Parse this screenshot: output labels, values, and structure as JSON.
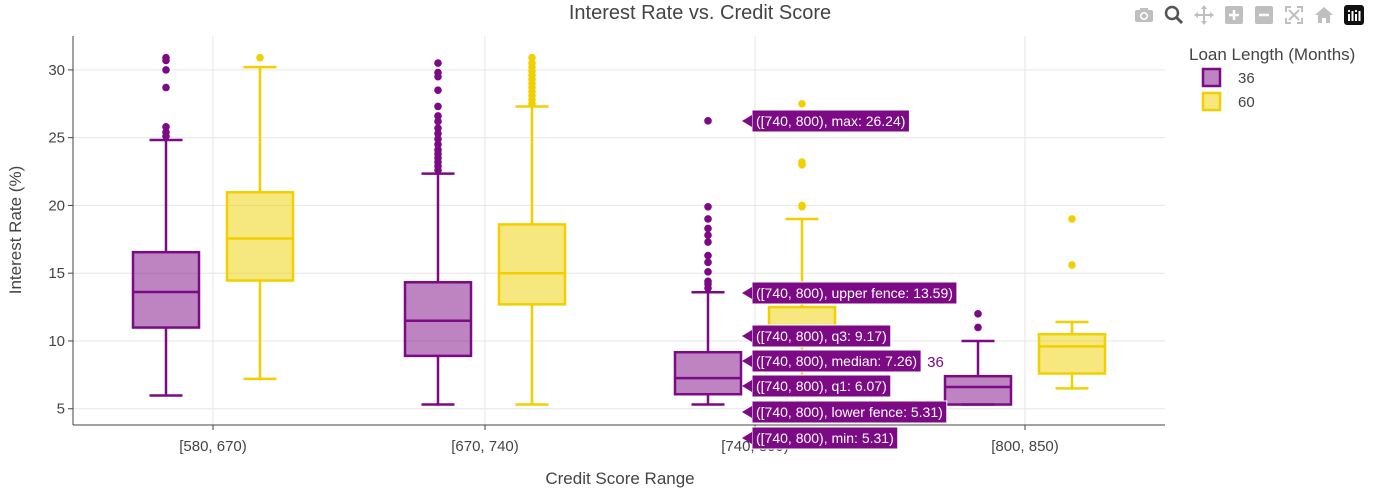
{
  "chart_data": {
    "type": "box",
    "title": "Interest Rate vs. Credit Score",
    "xlabel": "Credit Score Range",
    "ylabel": "Interest Rate (%)",
    "categories": [
      "[580, 670)",
      "[670, 740)",
      "[740, 800)",
      "[800, 850)"
    ],
    "ylim": [
      3.8,
      32.5
    ],
    "yticks": [
      5,
      10,
      15,
      20,
      25,
      30
    ],
    "grid": true,
    "legend": {
      "title": "Loan Length (Months)",
      "placement": "top-right"
    },
    "series": [
      {
        "name": "36",
        "color": "#7b0a84",
        "boxes": [
          {
            "min": 5.98,
            "q1": 10.99,
            "median": 13.61,
            "q3": 16.55,
            "max": 24.83,
            "outliers": [
              25.1,
              25.4,
              25.8,
              28.7,
              30.0,
              30.7,
              30.9
            ]
          },
          {
            "min": 5.31,
            "q1": 8.9,
            "median": 11.49,
            "q3": 14.33,
            "max": 22.35,
            "outliers": [
              22.6,
              22.9,
              23.2,
              23.5,
              23.8,
              24.1,
              24.5,
              24.9,
              25.3,
              25.7,
              26.2,
              26.6,
              27.3,
              28.5,
              29.5,
              29.8,
              30.5
            ]
          },
          {
            "min": 5.31,
            "q1": 6.07,
            "median": 7.26,
            "q3": 9.17,
            "max": 13.59,
            "outliers": [
              13.9,
              14.2,
              14.4,
              15.1,
              15.8,
              16.3,
              17.3,
              17.8,
              18.3,
              19.0,
              19.9,
              26.24
            ]
          },
          {
            "min": 5.31,
            "q1": 5.31,
            "median": 6.6,
            "q3": 7.4,
            "max": 10.0,
            "outliers": [
              11.0,
              12.0
            ]
          }
        ]
      },
      {
        "name": "60",
        "color": "#f0d000",
        "boxes": [
          {
            "min": 7.2,
            "q1": 14.46,
            "median": 17.56,
            "q3": 20.97,
            "max": 30.2,
            "outliers": [
              30.9
            ]
          },
          {
            "min": 5.31,
            "q1": 12.7,
            "median": 15.0,
            "q3": 18.6,
            "max": 27.3,
            "outliers": [
              27.5,
              27.8,
              28.1,
              28.4,
              28.7,
              29.0,
              29.3,
              29.6,
              29.9,
              30.2,
              30.5,
              30.9
            ]
          },
          {
            "min": 6.0,
            "q1": 9.6,
            "median": 10.9,
            "q3": 12.5,
            "max": 19.0,
            "outliers": [
              19.9,
              20.0,
              23.0,
              23.2,
              27.5
            ]
          },
          {
            "min": 6.5,
            "q1": 7.6,
            "median": 9.6,
            "q3": 10.5,
            "max": 11.4,
            "outliers": [
              15.6,
              19.0
            ]
          }
        ]
      }
    ],
    "hover": {
      "series_label": "36",
      "labels": [
        {
          "text": "([740, 800), max: 26.24)",
          "value": 26.24
        },
        {
          "text": "([740, 800), upper fence: 13.59)",
          "value": 13.59
        },
        {
          "text": "([740, 800), q3: 9.17)",
          "value": 9.17
        },
        {
          "text": "([740, 800), median: 7.26)",
          "value": 7.26
        },
        {
          "text": "([740, 800), q1: 6.07)",
          "value": 6.07
        },
        {
          "text": "([740, 800), lower fence: 5.31)",
          "value": 5.31
        },
        {
          "text": "([740, 800), min: 5.31)",
          "value": 5.31
        }
      ]
    }
  },
  "modebar": {
    "icons": [
      "camera-icon",
      "zoom-icon",
      "pan-icon",
      "zoom-in-icon",
      "zoom-out-icon",
      "autoscale-icon",
      "home-icon",
      "plotly-logo-icon"
    ]
  }
}
